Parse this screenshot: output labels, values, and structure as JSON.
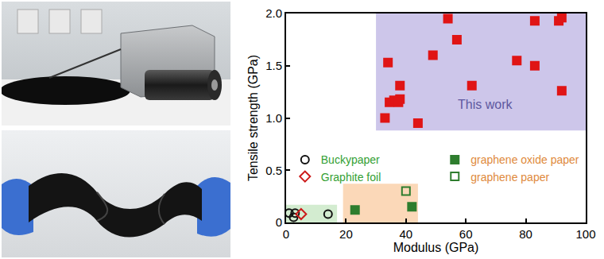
{
  "chart_data": {
    "type": "scatter",
    "xlabel": "Modulus (GPa)",
    "ylabel": "Tensile strength (GPa)",
    "xlim": [
      0,
      100
    ],
    "xticks": [
      0,
      20,
      40,
      60,
      80,
      100
    ],
    "ylim": [
      0,
      2
    ],
    "yticks": [
      0,
      0.5,
      {
        "value": 1,
        "label": "1.0"
      },
      1.5,
      {
        "value": 2,
        "label": "2.0"
      }
    ],
    "grid": false,
    "legend": "left",
    "regions": [
      {
        "label": "This work",
        "x": [
          30,
          100
        ],
        "y": [
          0.88,
          2
        ],
        "color": "#cdc6ea"
      },
      {
        "x": [
          0,
          17
        ],
        "y": [
          0,
          0.17
        ],
        "color": "#d3ecd0"
      },
      {
        "x": [
          19,
          44
        ],
        "y": [
          0,
          0.37
        ],
        "color": "#fbd8b8"
      }
    ],
    "series": [
      {
        "color": "#e01515",
        "marker": "square",
        "x": [
          34,
          34.5,
          36,
          38,
          38,
          37.5,
          33,
          44,
          49,
          54,
          57,
          62,
          77,
          83,
          83,
          91,
          92,
          92
        ],
        "values": [
          1.53,
          1.15,
          1.17,
          1.31,
          1.18,
          1.15,
          1.0,
          0.95,
          1.6,
          1.95,
          1.75,
          1.31,
          1.55,
          1.5,
          1.93,
          1.93,
          1.96,
          1.26
        ]
      },
      {
        "name": "Buckypaper",
        "color": "#111111",
        "marker": "circle-open",
        "x": [
          1,
          2.5,
          3,
          14
        ],
        "values": [
          0.09,
          0.05,
          0.09,
          0.08
        ]
      },
      {
        "name": "graphene oxide paper",
        "color": "#2e7d2e",
        "marker": "square",
        "x": [
          23,
          42
        ],
        "values": [
          0.12,
          0.15
        ]
      },
      {
        "name": "Graphite foil",
        "color": "#cc1a1a",
        "marker": "diamond-open",
        "x": [
          5
        ],
        "values": [
          0.08
        ]
      },
      {
        "name": "graphene paper",
        "color": "#2e7d2e",
        "marker": "square-open",
        "x": [
          40
        ],
        "values": [
          0.3
        ]
      }
    ]
  }
}
